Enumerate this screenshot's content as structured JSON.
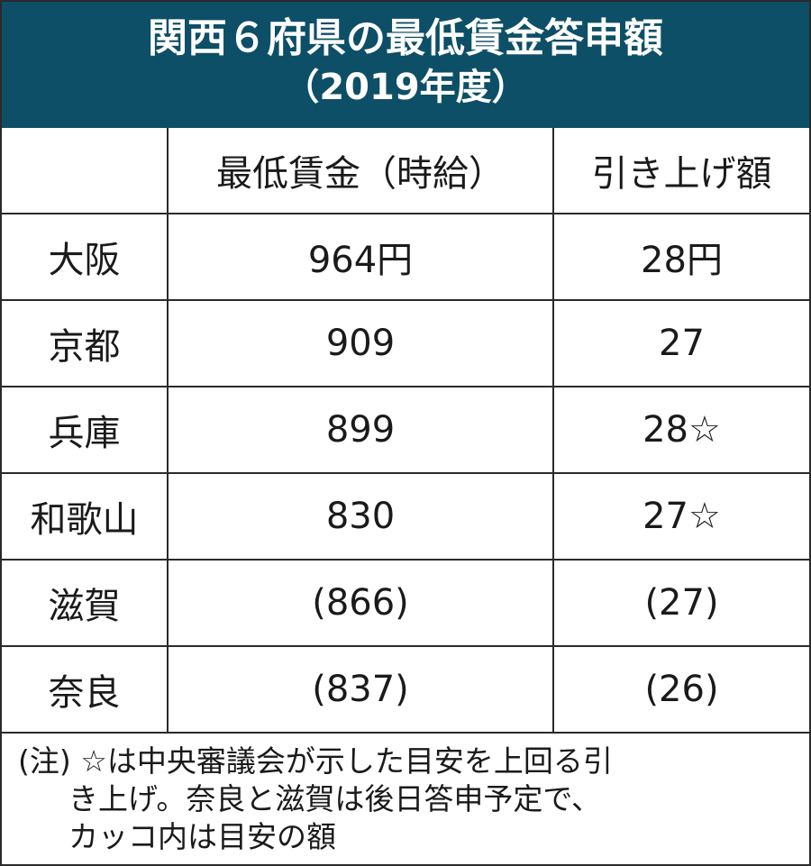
{
  "title": {
    "line1": "関西６府県の最低賃金答申額",
    "line2": "（2019年度）"
  },
  "table": {
    "headers": [
      "",
      "最低賃金（時給）",
      "引き上げ額"
    ],
    "rows": [
      {
        "pref": "大阪",
        "wage": "964円",
        "raise": "28円"
      },
      {
        "pref": "京都",
        "wage": "909",
        "raise": "27"
      },
      {
        "pref": "兵庫",
        "wage": "899",
        "raise": "28☆"
      },
      {
        "pref": "和歌山",
        "wage": "830",
        "raise": "27☆"
      },
      {
        "pref": "滋賀",
        "wage": "(866)",
        "raise": "(27)"
      },
      {
        "pref": "奈良",
        "wage": "(837)",
        "raise": "(26)"
      }
    ]
  },
  "note": {
    "line1": "(注) ☆は中央審議会が示した目安を上回る引",
    "line2": "き上げ。奈良と滋賀は後日答申予定で、",
    "line3": "カッコ内は目安の額"
  },
  "colors": {
    "header_bg": "#0d4f66",
    "header_text": "#ffffff",
    "border": "#2a2a2a"
  }
}
